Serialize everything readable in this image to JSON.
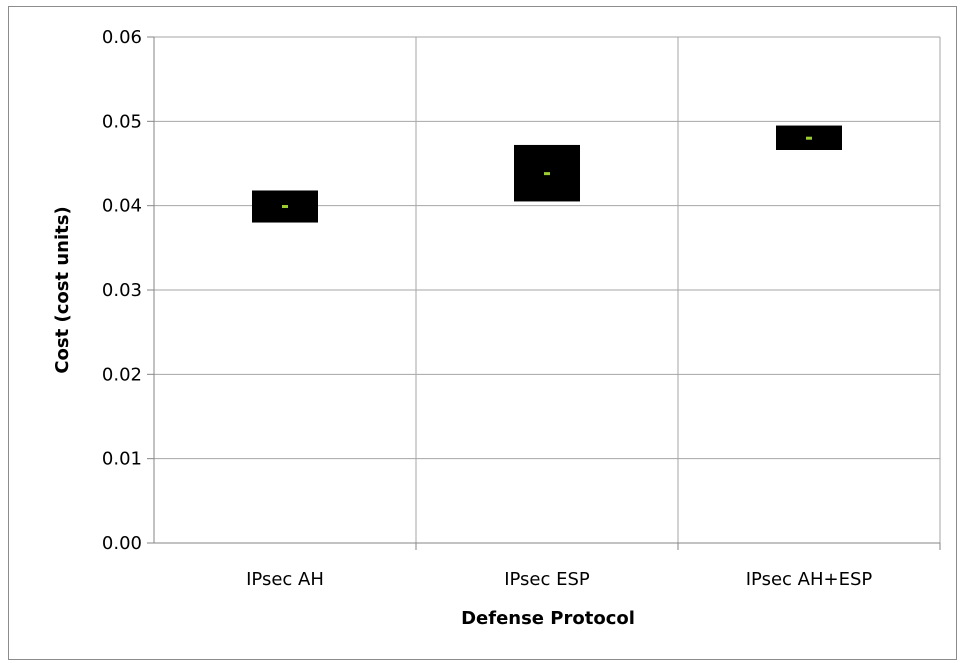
{
  "chart_data": {
    "type": "box",
    "title": "",
    "xlabel": "Defense Protocol",
    "ylabel": "Cost (cost units)",
    "ylim": [
      0,
      0.06
    ],
    "yticks": [
      "0.00",
      "0.01",
      "0.02",
      "0.03",
      "0.04",
      "0.05",
      "0.06"
    ],
    "ytick_values": [
      0,
      0.01,
      0.02,
      0.03,
      0.04,
      0.05,
      0.06
    ],
    "categories": [
      "IPsec AH",
      "IPsec ESP",
      "IPsec AH+ESP"
    ],
    "boxes": [
      {
        "category": "IPsec AH",
        "low": 0.038,
        "high": 0.0418,
        "median": 0.0399
      },
      {
        "category": "IPsec ESP",
        "low": 0.0405,
        "high": 0.0472,
        "median": 0.0438
      },
      {
        "category": "IPsec AH+ESP",
        "low": 0.0466,
        "high": 0.0495,
        "median": 0.048
      }
    ],
    "grid": true,
    "legend": "none",
    "colors": {
      "box": "#000000",
      "median": "#9acd32",
      "grid": "#a6a6a6",
      "axis": "#868686"
    }
  }
}
